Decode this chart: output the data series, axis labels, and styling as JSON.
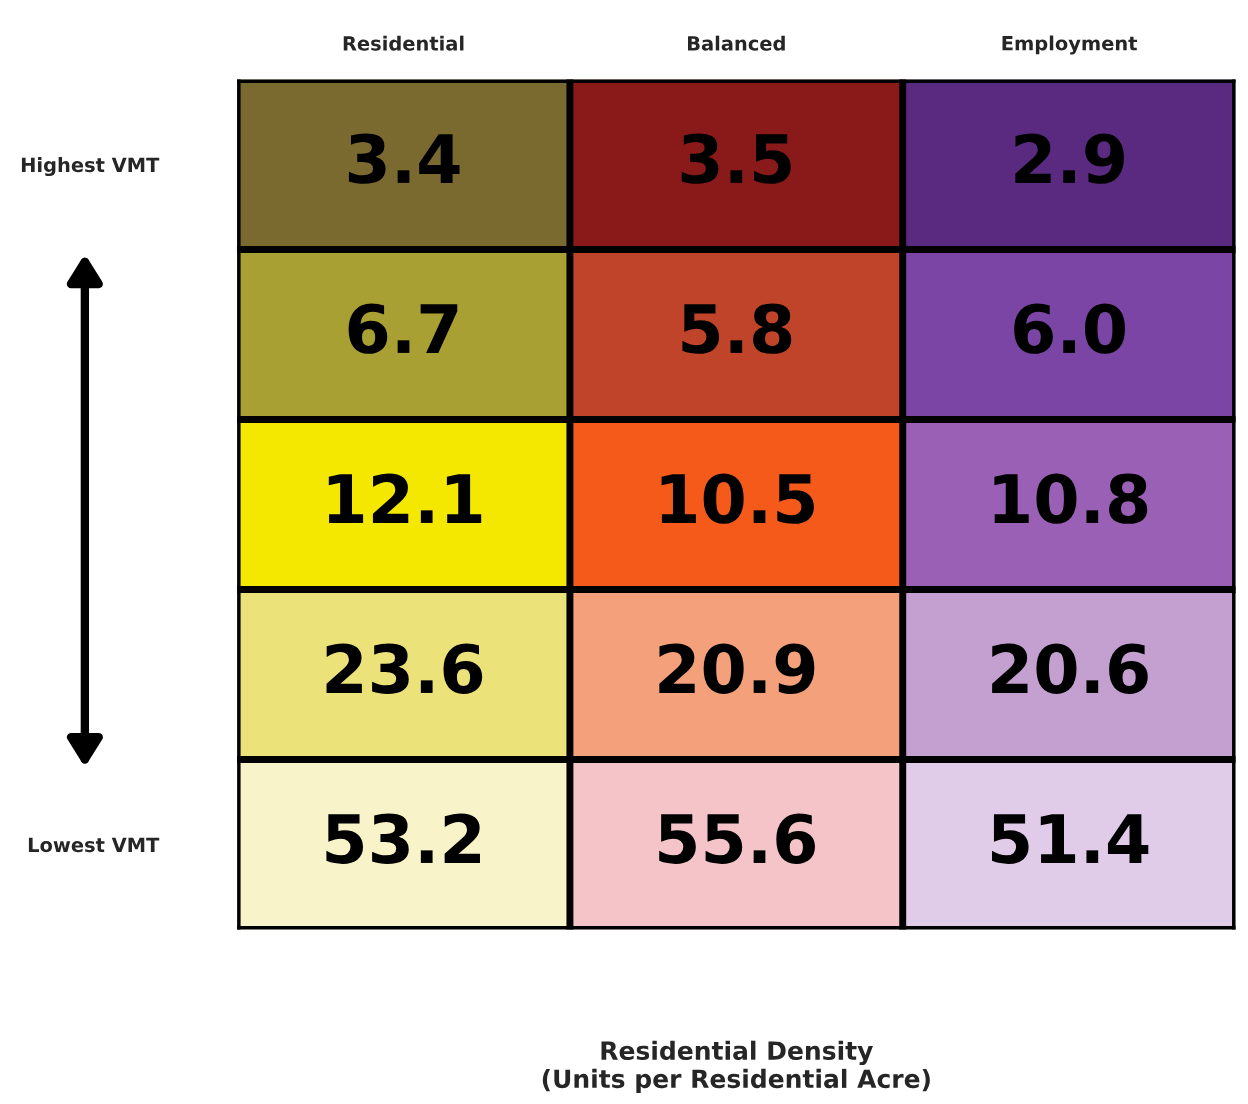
{
  "chart_data": {
    "type": "heatmap",
    "data_labels": true,
    "xlabel": "Residential Density\n(Units per Residential Acre)",
    "categories": [
      "Residential",
      "Balanced",
      "Employment"
    ],
    "y_categories": [
      "Highest VMT",
      null,
      null,
      null,
      "Lowest VMT"
    ],
    "cells": [
      [
        3.4,
        3.5,
        2.9
      ],
      [
        6.7,
        5.8,
        6.0
      ],
      [
        12.1,
        10.5,
        10.8
      ],
      [
        23.6,
        20.9,
        20.6
      ],
      [
        53.2,
        55.6,
        51.4
      ]
    ],
    "cell_labels": [
      [
        "3.4",
        "3.5",
        "2.9"
      ],
      [
        "6.7",
        "5.8",
        "6.0"
      ],
      [
        "12.1",
        "10.5",
        "10.8"
      ],
      [
        "23.6",
        "20.9",
        "20.6"
      ],
      [
        "53.2",
        "55.6",
        "51.4"
      ]
    ],
    "colors": [
      [
        "#7a6a30",
        "#8a1a1a",
        "#5a2a80"
      ],
      [
        "#a8a032",
        "#c0442a",
        "#7a45a5"
      ],
      [
        "#f5e800",
        "#f55a1a",
        "#9a60b5"
      ],
      [
        "#ece27a",
        "#f4a07a",
        "#c4a0d0"
      ],
      [
        "#f8f3c8",
        "#f5c4c8",
        "#e0cce8"
      ]
    ]
  }
}
